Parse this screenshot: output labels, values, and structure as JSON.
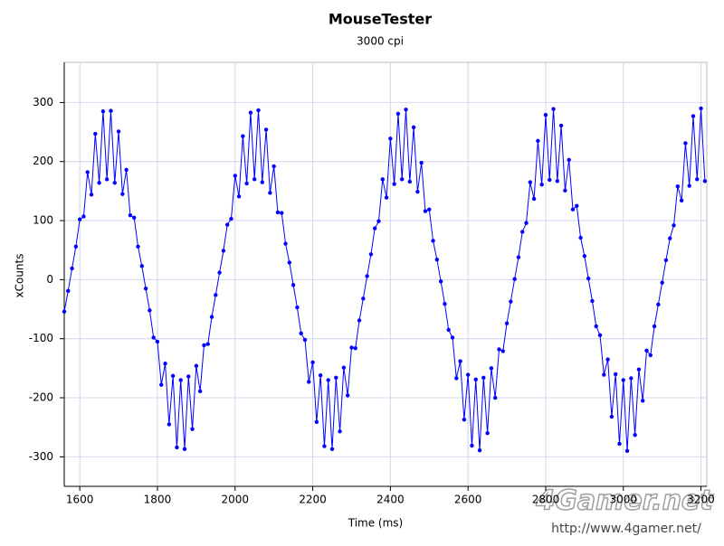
{
  "chart_data": {
    "type": "line",
    "title": "MouseTester",
    "subtitle": "3000 cpi",
    "x_label": "Time (ms)",
    "y_label": "xCounts",
    "watermark": {
      "logo": "4Gamer.net",
      "url": "http://www.4gamer.net/"
    },
    "xlim": [
      1560,
      3215
    ],
    "ylim": [
      -350,
      368
    ],
    "xticks": [
      1600,
      1800,
      2000,
      2200,
      2400,
      2600,
      2800,
      3000,
      3200
    ],
    "yticks": [
      -300,
      -200,
      -100,
      0,
      100,
      200,
      300
    ],
    "grid": true,
    "markers": true,
    "x": [
      1560,
      1570,
      1580,
      1590,
      1600,
      1610,
      1620,
      1630,
      1640,
      1650,
      1660,
      1670,
      1680,
      1690,
      1700,
      1710,
      1720,
      1730,
      1740,
      1750,
      1760,
      1770,
      1780,
      1790,
      1800,
      1810,
      1820,
      1830,
      1840,
      1850,
      1860,
      1870,
      1880,
      1890,
      1900,
      1910,
      1920,
      1930,
      1940,
      1950,
      1960,
      1970,
      1980,
      1990,
      2000,
      2010,
      2020,
      2030,
      2040,
      2050,
      2060,
      2070,
      2080,
      2090,
      2100,
      2110,
      2120,
      2130,
      2140,
      2150,
      2160,
      2170,
      2180,
      2190,
      2200,
      2210,
      2220,
      2230,
      2240,
      2250,
      2260,
      2270,
      2280,
      2290,
      2300,
      2310,
      2320,
      2330,
      2340,
      2350,
      2360,
      2370,
      2380,
      2390,
      2400,
      2410,
      2420,
      2430,
      2440,
      2450,
      2460,
      2470,
      2480,
      2490,
      2500,
      2510,
      2520,
      2530,
      2540,
      2550,
      2560,
      2570,
      2580,
      2590,
      2600,
      2610,
      2620,
      2630,
      2640,
      2650,
      2660,
      2670,
      2680,
      2690,
      2700,
      2710,
      2720,
      2730,
      2740,
      2750,
      2760,
      2770,
      2780,
      2790,
      2800,
      2810,
      2820,
      2830,
      2840,
      2850,
      2860,
      2870,
      2880,
      2890,
      2900,
      2910,
      2920,
      2930,
      2940,
      2950,
      2960,
      2970,
      2980,
      2990,
      3000,
      3010,
      3020,
      3030,
      3040,
      3050,
      3060,
      3070,
      3080,
      3090,
      3100,
      3110,
      3120,
      3130,
      3140,
      3150,
      3160,
      3170,
      3180,
      3190,
      3200,
      3210
    ],
    "series": [
      {
        "color": "#0000ff",
        "values": [
          -54,
          -19,
          19,
          56,
          102,
          107,
          182,
          144,
          247,
          164,
          285,
          170,
          286,
          164,
          251,
          145,
          186,
          109,
          105,
          56,
          23,
          -15,
          -52,
          -98,
          -105,
          -178,
          -142,
          -245,
          -163,
          -284,
          -170,
          -287,
          -164,
          -253,
          -146,
          -189,
          -111,
          -109,
          -63,
          -26,
          12,
          49,
          93,
          103,
          176,
          141,
          243,
          163,
          283,
          170,
          287,
          165,
          254,
          147,
          192,
          114,
          113,
          61,
          29,
          -9,
          -47,
          -91,
          -102,
          -173,
          -140,
          -241,
          -162,
          -282,
          -170,
          -287,
          -166,
          -257,
          -149,
          -196,
          -115,
          -116,
          -69,
          -32,
          6,
          43,
          87,
          99,
          170,
          139,
          239,
          162,
          281,
          170,
          288,
          166,
          258,
          149,
          198,
          116,
          119,
          66,
          34,
          -3,
          -41,
          -85,
          -98,
          -167,
          -138,
          -237,
          -161,
          -281,
          -169,
          -289,
          -166,
          -260,
          -150,
          -200,
          -118,
          -121,
          -74,
          -37,
          1,
          38,
          81,
          96,
          165,
          137,
          235,
          161,
          279,
          169,
          289,
          167,
          261,
          151,
          203,
          119,
          125,
          71,
          40,
          2,
          -36,
          -79,
          -94,
          -161,
          -135,
          -232,
          -160,
          -278,
          -170,
          -290,
          -167,
          -263,
          -152,
          -205,
          -120,
          -128,
          -79,
          -42,
          -5,
          33,
          70,
          92,
          158,
          134,
          231,
          159,
          277,
          170,
          290,
          167
        ]
      }
    ]
  }
}
